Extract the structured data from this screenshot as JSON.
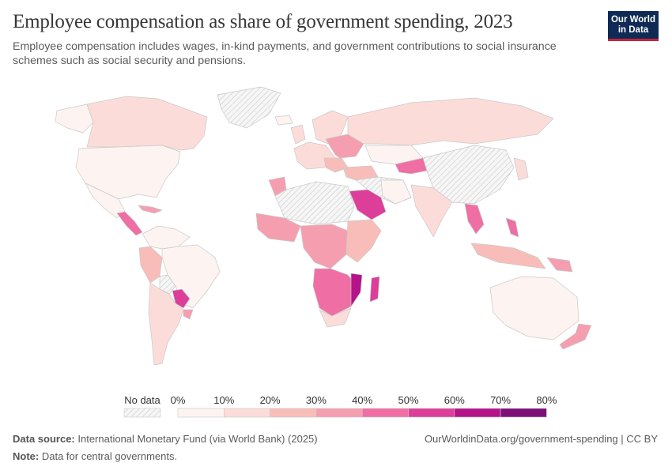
{
  "title": "Employee compensation as share of government spending, 2023",
  "subtitle": "Employee compensation includes wages, in-kind payments, and government contributions to social insurance schemes such as social security and pensions.",
  "logo": {
    "line1": "Our World",
    "line2": "in Data"
  },
  "legend": {
    "no_data_label": "No data",
    "ticks": [
      "0%",
      "10%",
      "20%",
      "30%",
      "40%",
      "50%",
      "60%",
      "70%",
      "80%"
    ],
    "colors": [
      "#fdf3f0",
      "#fcdcd9",
      "#f9bdb9",
      "#f59eb0",
      "#ef6ea4",
      "#dc3e9a",
      "#b4138a",
      "#7c0f79"
    ]
  },
  "colors": {
    "no_data_fill": "#f3f3f3",
    "land_base": "#fbeceb",
    "border": "#c9c9c9"
  },
  "footer": {
    "source_label": "Data source:",
    "source_text": "International Monetary Fund (via World Bank) (2025)",
    "note_label": "Note:",
    "note_text": "Data for central governments.",
    "credit": "OurWorldinData.org/government-spending | CC BY"
  }
}
